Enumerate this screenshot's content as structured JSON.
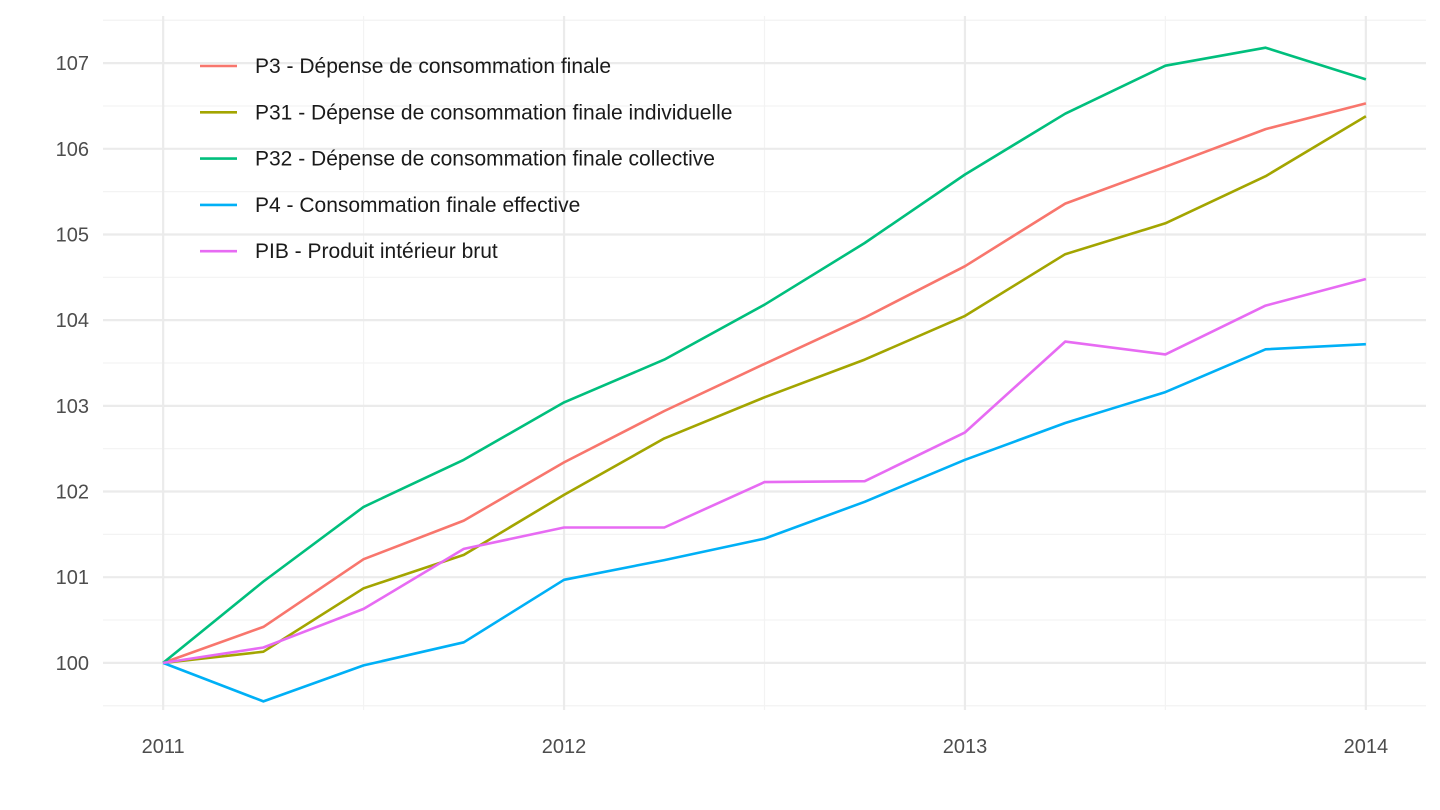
{
  "chart_data": {
    "type": "line",
    "title": "",
    "xlabel": "",
    "ylabel": "",
    "xlim": [
      2010.85,
      2014.15
    ],
    "ylim": [
      99.45,
      107.55
    ],
    "x_ticks": [
      2011,
      2012,
      2013,
      2014
    ],
    "x_tick_labels": [
      "2011",
      "2012",
      "2013",
      "2014"
    ],
    "x_minor_ticks": [
      2011.5,
      2012.5,
      2013.5
    ],
    "y_ticks": [
      100,
      101,
      102,
      103,
      104,
      105,
      106,
      107
    ],
    "y_tick_labels": [
      "100",
      "101",
      "102",
      "103",
      "104",
      "105",
      "106",
      "107"
    ],
    "grid": true,
    "legend_position": "top-left",
    "x": [
      2011.0,
      2011.25,
      2011.5,
      2011.75,
      2012.0,
      2012.25,
      2012.5,
      2012.75,
      2013.0,
      2013.25,
      2013.5,
      2013.75,
      2014.0
    ],
    "series": [
      {
        "name": "P3 - Dépense de consommation finale",
        "color": "#F8766D",
        "values": [
          100,
          100.42,
          101.21,
          101.66,
          102.34,
          102.94,
          103.49,
          104.03,
          104.63,
          105.36,
          105.79,
          106.23,
          106.53
        ]
      },
      {
        "name": "P31 - Dépense de consommation finale individuelle",
        "color": "#A3A500",
        "values": [
          100,
          100.13,
          100.87,
          101.26,
          101.96,
          102.62,
          103.1,
          103.54,
          104.05,
          104.77,
          105.13,
          105.68,
          106.38
        ]
      },
      {
        "name": "P32 - Dépense de consommation finale collective",
        "color": "#00BF7D",
        "values": [
          100,
          100.95,
          101.82,
          102.37,
          103.04,
          103.54,
          104.18,
          104.9,
          105.7,
          106.41,
          106.97,
          107.18,
          106.81
        ]
      },
      {
        "name": "P4 - Consommation finale effective",
        "color": "#00B0F6",
        "values": [
          100,
          99.55,
          99.97,
          100.24,
          100.97,
          101.2,
          101.45,
          101.88,
          102.37,
          102.8,
          103.16,
          103.66,
          103.72
        ]
      },
      {
        "name": "PIB - Produit intérieur brut",
        "color": "#E76BF3",
        "values": [
          100,
          100.18,
          100.63,
          101.33,
          101.58,
          101.58,
          102.11,
          102.12,
          102.69,
          103.75,
          103.6,
          104.17,
          104.48
        ]
      }
    ]
  }
}
